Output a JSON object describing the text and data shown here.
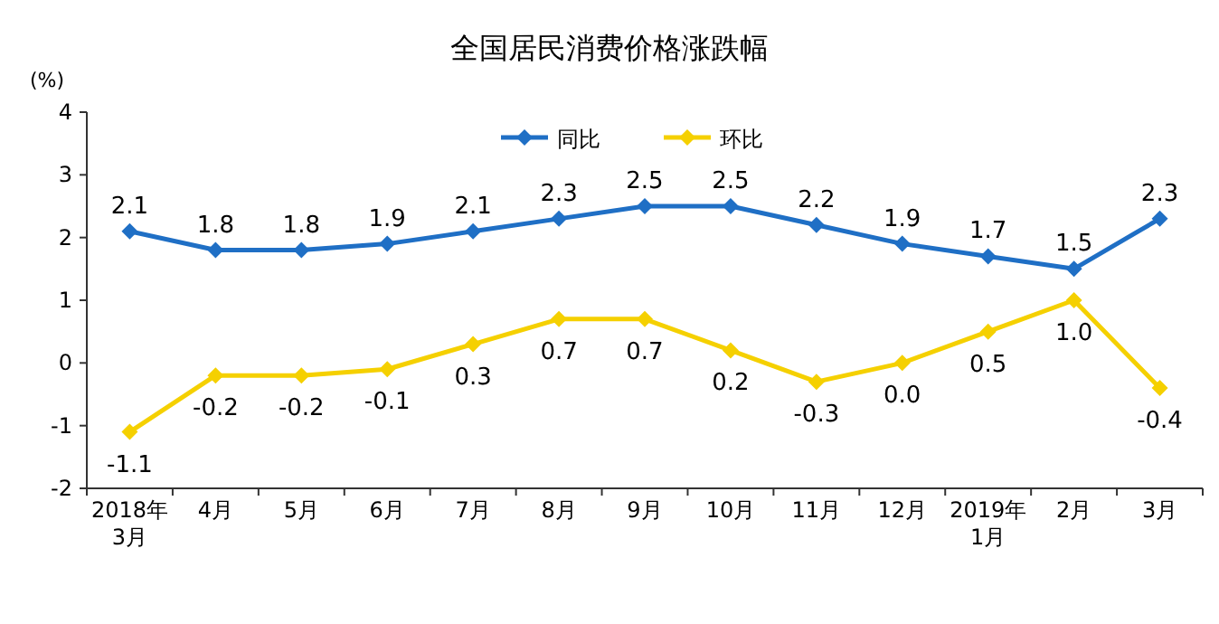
{
  "chart_data": {
    "type": "line",
    "title": "全国居民消费价格涨跌幅",
    "ylabel": "(%)",
    "categories": [
      "2018年\n3月",
      "4月",
      "5月",
      "6月",
      "7月",
      "8月",
      "9月",
      "10月",
      "11月",
      "12月",
      "2019年\n1月",
      "2月",
      "3月"
    ],
    "series": [
      {
        "name": "同比",
        "color": "#1f6fc5",
        "values": [
          2.1,
          1.8,
          1.8,
          1.9,
          2.1,
          2.3,
          2.5,
          2.5,
          2.2,
          1.9,
          1.7,
          1.5,
          2.3
        ],
        "value_labels": [
          "2.1",
          "1.8",
          "1.8",
          "1.9",
          "2.1",
          "2.3",
          "2.5",
          "2.5",
          "2.2",
          "1.9",
          "1.7",
          "1.5",
          "2.3"
        ]
      },
      {
        "name": "环比",
        "color": "#f5d000",
        "values": [
          -1.1,
          -0.2,
          -0.2,
          -0.1,
          0.3,
          0.7,
          0.7,
          0.2,
          -0.3,
          0.0,
          0.5,
          1.0,
          -0.4
        ],
        "value_labels": [
          "-1.1",
          "-0.2",
          "-0.2",
          "-0.1",
          "0.3",
          "0.7",
          "0.7",
          "0.2",
          "-0.3",
          "0.0",
          "0.5",
          "1.0",
          "-0.4"
        ]
      }
    ],
    "ylim": [
      -2,
      4
    ],
    "yticks": [
      -2,
      -1,
      0,
      1,
      2,
      3,
      4
    ],
    "marker": "diamond",
    "line_style": "solid",
    "grid": false,
    "legend": "top"
  }
}
